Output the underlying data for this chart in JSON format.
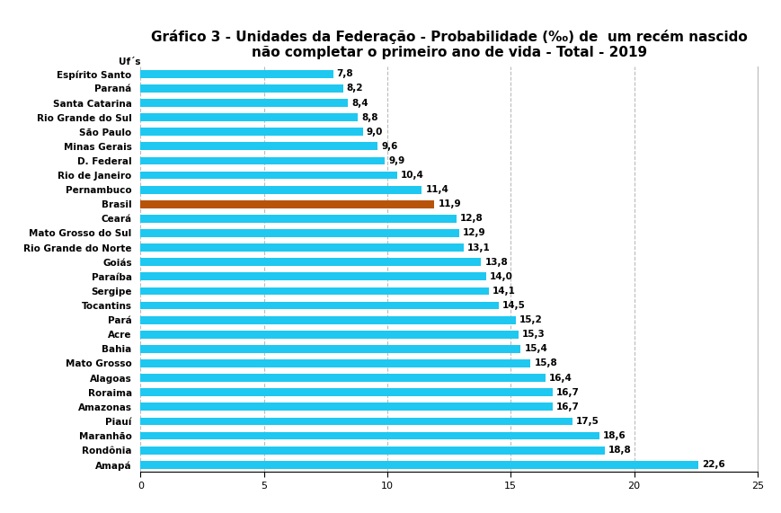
{
  "title_line1": "Gráfico 3 - Unidades da Federação - Probabilidade (‰) de  um recém nascido",
  "title_line2": "não completar o primeiro ano de vida - Total - 2019",
  "ylabel_text": "Uf´s",
  "xlabel_text": "(‰)",
  "xlim": [
    0,
    25
  ],
  "xticks": [
    0,
    5,
    10,
    15,
    20,
    25
  ],
  "categories": [
    "Amapá",
    "Rondônia",
    "Maranhão",
    "Piauí",
    "Amazonas",
    "Roraima",
    "Alagoas",
    "Mato Grosso",
    "Bahia",
    "Acre",
    "Pará",
    "Tocantins",
    "Sergipe",
    "Paraíba",
    "Goiás",
    "Rio Grande do Norte",
    "Mato Grosso do Sul",
    "Ceará",
    "Brasil",
    "Pernambuco",
    "Rio de Janeiro",
    "D. Federal",
    "Minas Gerais",
    "São Paulo",
    "Rio Grande do Sul",
    "Santa Catarina",
    "Paraná",
    "Espírito Santo"
  ],
  "values": [
    22.6,
    18.8,
    18.6,
    17.5,
    16.7,
    16.7,
    16.4,
    15.8,
    15.4,
    15.3,
    15.2,
    14.5,
    14.1,
    14.0,
    13.8,
    13.1,
    12.9,
    12.8,
    11.9,
    11.4,
    10.4,
    9.9,
    9.6,
    9.0,
    8.8,
    8.4,
    8.2,
    7.8
  ],
  "bar_colors": [
    "#1EC8F0",
    "#1EC8F0",
    "#1EC8F0",
    "#1EC8F0",
    "#1EC8F0",
    "#1EC8F0",
    "#1EC8F0",
    "#1EC8F0",
    "#1EC8F0",
    "#1EC8F0",
    "#1EC8F0",
    "#1EC8F0",
    "#1EC8F0",
    "#1EC8F0",
    "#1EC8F0",
    "#1EC8F0",
    "#1EC8F0",
    "#1EC8F0",
    "#B8530A",
    "#1EC8F0",
    "#1EC8F0",
    "#1EC8F0",
    "#1EC8F0",
    "#1EC8F0",
    "#1EC8F0",
    "#1EC8F0",
    "#1EC8F0",
    "#1EC8F0"
  ],
  "value_labels": [
    "22,6",
    "18,8",
    "18,6",
    "17,5",
    "16,7",
    "16,7",
    "16,4",
    "15,8",
    "15,4",
    "15,3",
    "15,2",
    "14,5",
    "14,1",
    "14,0",
    "13,8",
    "13,1",
    "12,9",
    "12,8",
    "11,9",
    "11,4",
    "10,4",
    "9,9",
    "9,6",
    "9,0",
    "8,8",
    "8,4",
    "8,2",
    "7,8"
  ],
  "background_color": "#FFFFFF",
  "grid_color": "#BBBBBB",
  "title_fontsize": 11,
  "label_fontsize": 7.5,
  "tick_fontsize": 8,
  "bar_height": 0.55,
  "value_fontsize": 7.5
}
